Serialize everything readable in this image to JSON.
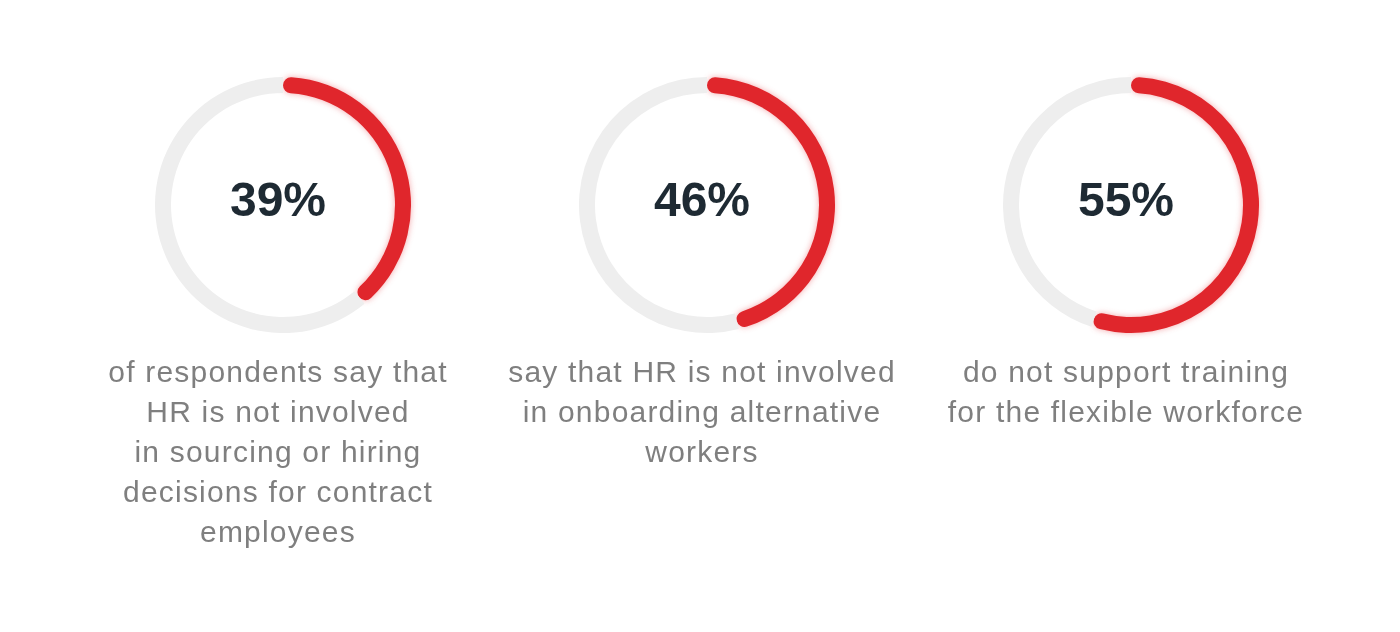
{
  "chart_data": [
    {
      "type": "donut",
      "title": "39%",
      "categories": [
        null,
        null
      ],
      "values": [
        39,
        61
      ],
      "colors": [
        "#e0262c",
        "#eeeeee"
      ],
      "annotations": [
        "of respondents say that\nHR is not involved\nin sourcing or hiring\ndecisions for contract\nemployees"
      ]
    },
    {
      "type": "donut",
      "title": "46%",
      "categories": [
        null,
        null
      ],
      "values": [
        46,
        54
      ],
      "colors": [
        "#e0262c",
        "#eeeeee"
      ],
      "annotations": [
        "say that HR is not involved\nin onboarding alternative\nworkers"
      ]
    },
    {
      "type": "donut",
      "title": "55%",
      "categories": [
        null,
        null
      ],
      "values": [
        55,
        45
      ],
      "colors": [
        "#e0262c",
        "#eeeeee"
      ],
      "annotations": [
        "do not support training\nfor the flexible workforce"
      ]
    }
  ]
}
